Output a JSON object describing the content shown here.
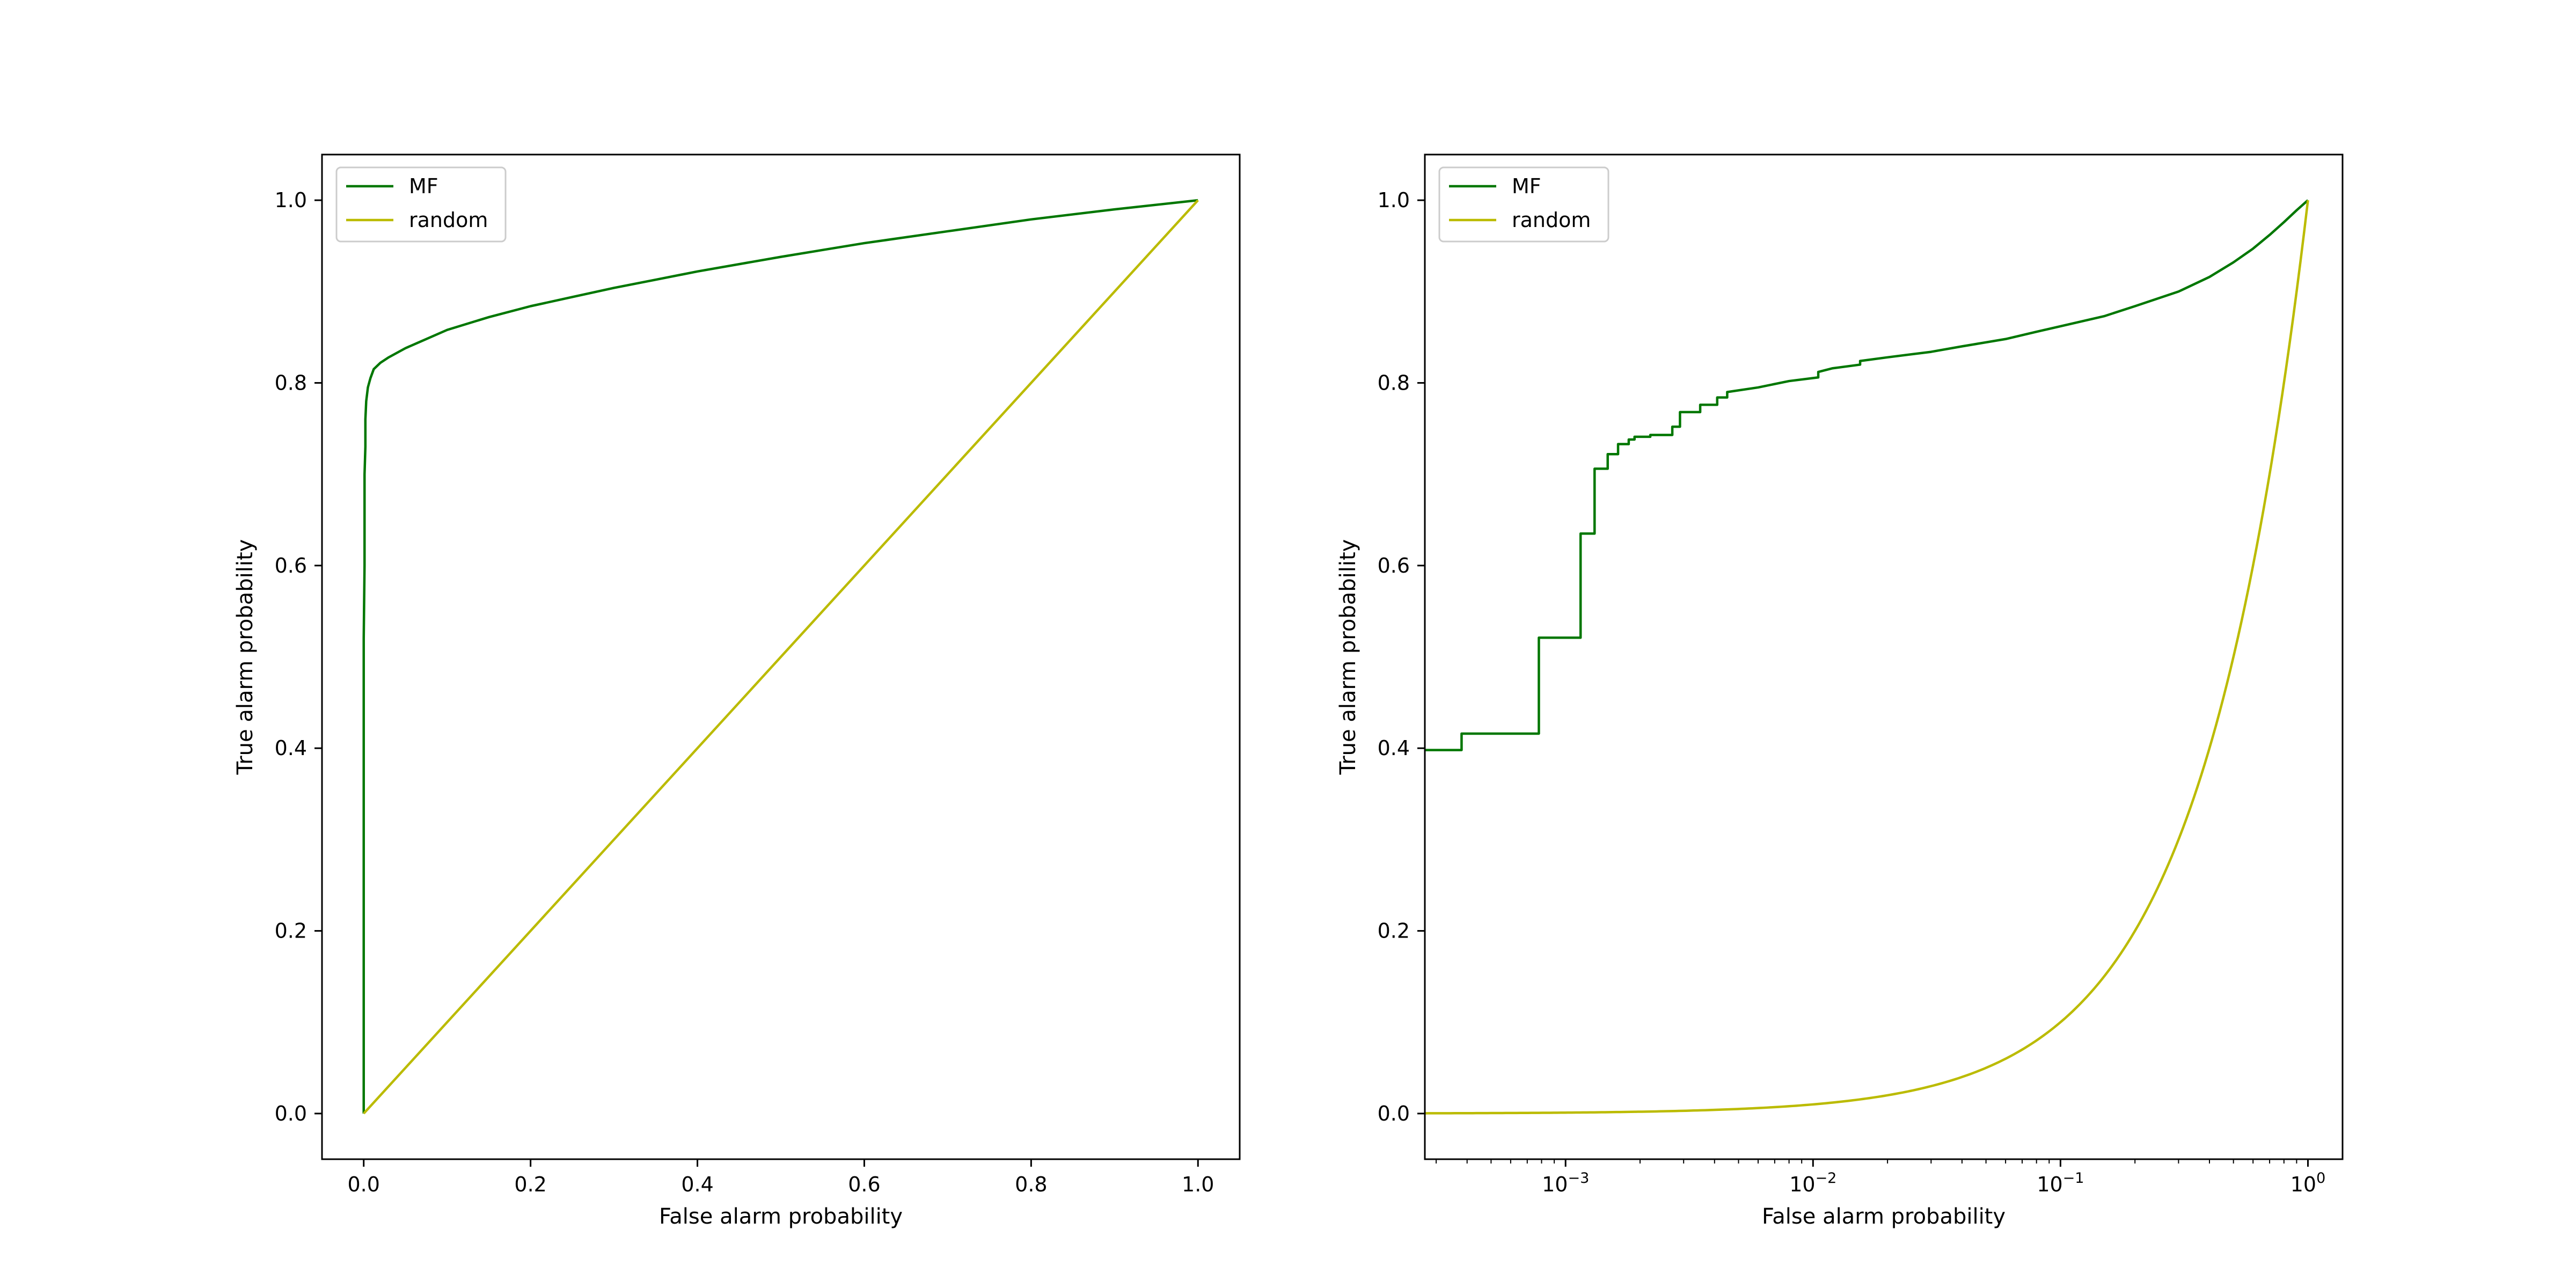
{
  "colors": {
    "mf": "#007700",
    "random": "#bbbb00",
    "axes": "#000000",
    "legend_border": "#cccccc"
  },
  "chart_data": [
    {
      "type": "line",
      "xscale": "linear",
      "xlabel": "False alarm probability",
      "ylabel": "True alarm probability",
      "xlim": [
        -0.05,
        1.05
      ],
      "ylim": [
        -0.05,
        1.05
      ],
      "xticks": [
        0.0,
        0.2,
        0.4,
        0.6,
        0.8,
        1.0
      ],
      "xtick_labels": [
        "0.0",
        "0.2",
        "0.4",
        "0.6",
        "0.8",
        "1.0"
      ],
      "yticks": [
        0.0,
        0.2,
        0.4,
        0.6,
        0.8,
        1.0
      ],
      "ytick_labels": [
        "0.0",
        "0.2",
        "0.4",
        "0.6",
        "0.8",
        "1.0"
      ],
      "legend": {
        "position": "upper-left",
        "entries": [
          "MF",
          "random"
        ]
      },
      "series": [
        {
          "name": "MF",
          "color_key": "mf",
          "x": [
            0,
            0,
            0,
            0.001,
            0.001,
            0.002,
            0.002,
            0.003,
            0.005,
            0.008,
            0.012,
            0.02,
            0.03,
            0.05,
            0.07,
            0.1,
            0.15,
            0.2,
            0.25,
            0.3,
            0.35,
            0.4,
            0.5,
            0.6,
            0.7,
            0.8,
            0.9,
            1.0
          ],
          "y": [
            0,
            0.4,
            0.52,
            0.6,
            0.7,
            0.73,
            0.76,
            0.78,
            0.795,
            0.805,
            0.815,
            0.822,
            0.828,
            0.838,
            0.846,
            0.858,
            0.872,
            0.884,
            0.894,
            0.904,
            0.913,
            0.922,
            0.938,
            0.953,
            0.966,
            0.979,
            0.99,
            1.0
          ]
        },
        {
          "name": "random",
          "color_key": "random",
          "x": [
            0.0,
            1.0
          ],
          "y": [
            0.0,
            1.0
          ]
        }
      ]
    },
    {
      "type": "line",
      "xscale": "log",
      "xlabel": "False alarm probability",
      "ylabel": "True alarm probability",
      "xlim": [
        0.00027,
        1.38
      ],
      "ylim": [
        -0.05,
        1.05
      ],
      "xticks": [
        0.001,
        0.01,
        0.1,
        1.0
      ],
      "xtick_labels": [
        {
          "base": "10",
          "exp": "−3"
        },
        {
          "base": "10",
          "exp": "−2"
        },
        {
          "base": "10",
          "exp": "−1"
        },
        {
          "base": "10",
          "exp": "0"
        }
      ],
      "yticks": [
        0.0,
        0.2,
        0.4,
        0.6,
        0.8,
        1.0
      ],
      "ytick_labels": [
        "0.0",
        "0.2",
        "0.4",
        "0.6",
        "0.8",
        "1.0"
      ],
      "legend": {
        "position": "upper-left",
        "entries": [
          "MF",
          "random"
        ]
      },
      "series": [
        {
          "name": "MF",
          "color_key": "mf",
          "step": true,
          "x": [
            0.00027,
            0.00038,
            0.00038,
            0.00078,
            0.00078,
            0.00115,
            0.00115,
            0.00131,
            0.00131,
            0.00148,
            0.00148,
            0.00163,
            0.00163,
            0.0018,
            0.0018,
            0.0019,
            0.0019,
            0.0022,
            0.0022,
            0.0027,
            0.0027,
            0.0029,
            0.0029,
            0.0035,
            0.0035,
            0.0041,
            0.0041,
            0.0045,
            0.0045,
            0.006,
            0.008,
            0.0105,
            0.0105,
            0.012,
            0.0155,
            0.0155,
            0.02,
            0.03,
            0.04,
            0.06,
            0.08,
            0.1,
            0.15,
            0.2,
            0.3,
            0.4,
            0.5,
            0.6,
            0.7,
            0.8,
            0.9,
            1.0
          ],
          "y": [
            0.398,
            0.398,
            0.416,
            0.416,
            0.521,
            0.521,
            0.635,
            0.635,
            0.706,
            0.706,
            0.722,
            0.722,
            0.733,
            0.733,
            0.738,
            0.738,
            0.741,
            0.741,
            0.743,
            0.743,
            0.752,
            0.752,
            0.768,
            0.768,
            0.776,
            0.776,
            0.784,
            0.784,
            0.79,
            0.795,
            0.802,
            0.806,
            0.812,
            0.816,
            0.82,
            0.824,
            0.828,
            0.834,
            0.84,
            0.848,
            0.856,
            0.862,
            0.873,
            0.884,
            0.9,
            0.916,
            0.932,
            0.947,
            0.962,
            0.976,
            0.989,
            1.0
          ]
        },
        {
          "name": "random",
          "color_key": "random",
          "function": "identity",
          "x_range": [
            0.00027,
            1.0
          ]
        }
      ]
    }
  ]
}
